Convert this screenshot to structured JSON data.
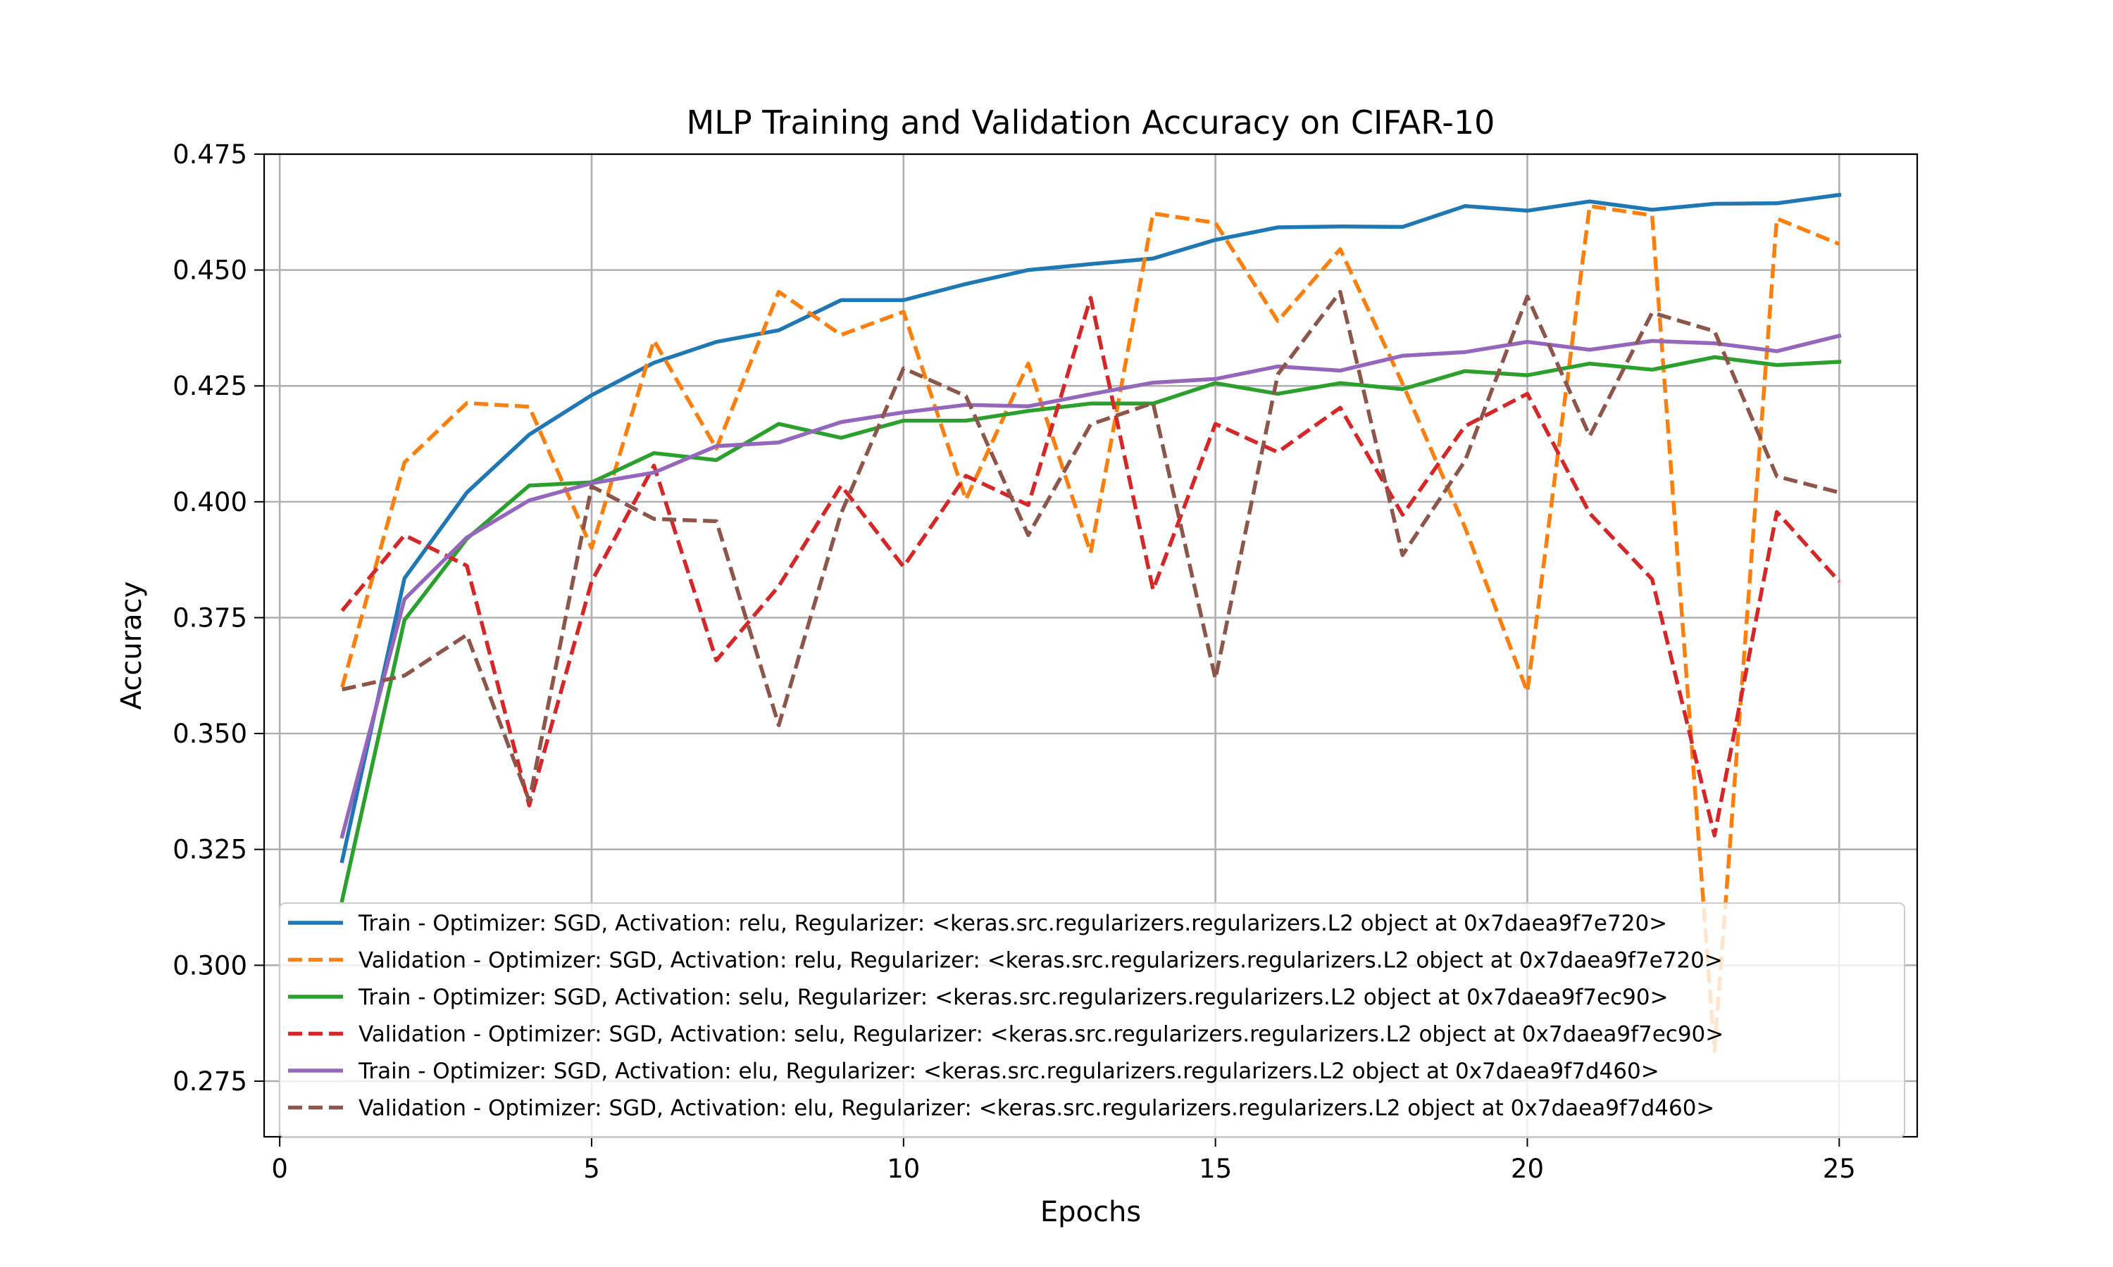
{
  "chart_data": {
    "type": "line",
    "title": "MLP Training and Validation Accuracy on CIFAR-10",
    "xlabel": "Epochs",
    "ylabel": "Accuracy",
    "xlim": [
      -0.25,
      26.25
    ],
    "ylim": [
      0.263,
      0.475
    ],
    "xticks": [
      0,
      5,
      10,
      15,
      20,
      25
    ],
    "yticks": [
      0.275,
      0.3,
      0.325,
      0.35,
      0.375,
      0.4,
      0.425,
      0.45,
      0.475
    ],
    "ytick_labels": [
      "0.275",
      "0.300",
      "0.325",
      "0.350",
      "0.375",
      "0.400",
      "0.425",
      "0.450",
      "0.475"
    ],
    "grid": true,
    "legend": "lower-right",
    "x": [
      1,
      2,
      3,
      4,
      5,
      6,
      7,
      8,
      9,
      10,
      11,
      12,
      13,
      14,
      15,
      16,
      17,
      18,
      19,
      20,
      21,
      22,
      23,
      24,
      25
    ],
    "series": [
      {
        "name": "Train - Optimizer: SGD, Activation: relu, Regularizer: <keras.src.regularizers.regularizers.L2 object at 0x7daea9f7e720>",
        "color": "#1f77b4",
        "dash": "solid",
        "values": [
          0.3225,
          0.3835,
          0.402,
          0.4145,
          0.423,
          0.43,
          0.4345,
          0.437,
          0.4435,
          0.4435,
          0.447,
          0.45,
          0.4513,
          0.4525,
          0.4565,
          0.4592,
          0.4594,
          0.4593,
          0.4638,
          0.4628,
          0.4648,
          0.463,
          0.4643,
          0.4644,
          0.4662
        ]
      },
      {
        "name": "Validation - Optimizer: SGD, Activation: relu, Regularizer: <keras.src.regularizers.regularizers.L2 object at 0x7daea9f7e720>",
        "color": "#ff7f0e",
        "dash": "dashed",
        "values": [
          0.36,
          0.4085,
          0.4213,
          0.4205,
          0.39,
          0.4348,
          0.4115,
          0.4453,
          0.436,
          0.441,
          0.4005,
          0.4298,
          0.389,
          0.4622,
          0.4602,
          0.439,
          0.4545,
          0.4255,
          0.3945,
          0.359,
          0.4638,
          0.4618,
          0.2815,
          0.4611,
          0.4556
        ]
      },
      {
        "name": "Train - Optimizer: SGD, Activation: selu, Regularizer: <keras.src.regularizers.regularizers.L2 object at 0x7daea9f7ec90>",
        "color": "#2ca02c",
        "dash": "solid",
        "values": [
          0.314,
          0.3745,
          0.392,
          0.4035,
          0.4042,
          0.4105,
          0.409,
          0.4168,
          0.4138,
          0.4175,
          0.4175,
          0.4196,
          0.4212,
          0.4212,
          0.4256,
          0.4233,
          0.4256,
          0.4243,
          0.4282,
          0.4273,
          0.4298,
          0.4285,
          0.4312,
          0.4295,
          0.4302
        ]
      },
      {
        "name": "Validation - Optimizer: SGD, Activation: selu, Regularizer: <keras.src.regularizers.regularizers.L2 object at 0x7daea9f7ec90>",
        "color": "#d62728",
        "dash": "dashed",
        "values": [
          0.3765,
          0.3928,
          0.3862,
          0.3345,
          0.3828,
          0.4078,
          0.3658,
          0.3818,
          0.4035,
          0.386,
          0.4056,
          0.3993,
          0.444,
          0.381,
          0.4168,
          0.4107,
          0.4203,
          0.3972,
          0.4163,
          0.4233,
          0.3975,
          0.3833,
          0.328,
          0.3978,
          0.3828
        ]
      },
      {
        "name": "Train - Optimizer: SGD, Activation: elu, Regularizer: <keras.src.regularizers.regularizers.L2 object at 0x7daea9f7d460>",
        "color": "#9467bd",
        "dash": "solid",
        "values": [
          0.3278,
          0.379,
          0.3923,
          0.4003,
          0.404,
          0.4063,
          0.412,
          0.4128,
          0.4172,
          0.4193,
          0.4209,
          0.4206,
          0.4232,
          0.4257,
          0.4265,
          0.4292,
          0.4283,
          0.4315,
          0.4323,
          0.4345,
          0.4328,
          0.4347,
          0.4342,
          0.4325,
          0.4358
        ]
      },
      {
        "name": "Validation - Optimizer: SGD, Activation: elu, Regularizer: <keras.src.regularizers.regularizers.L2 object at 0x7daea9f7d460>",
        "color": "#8c564b",
        "dash": "dashed",
        "values": [
          0.3595,
          0.3625,
          0.3713,
          0.3355,
          0.4033,
          0.3963,
          0.3958,
          0.3518,
          0.3975,
          0.4288,
          0.4228,
          0.3928,
          0.4167,
          0.4213,
          0.3618,
          0.4275,
          0.4453,
          0.3885,
          0.4088,
          0.4443,
          0.4142,
          0.4408,
          0.4368,
          0.4055,
          0.402
        ]
      }
    ]
  }
}
